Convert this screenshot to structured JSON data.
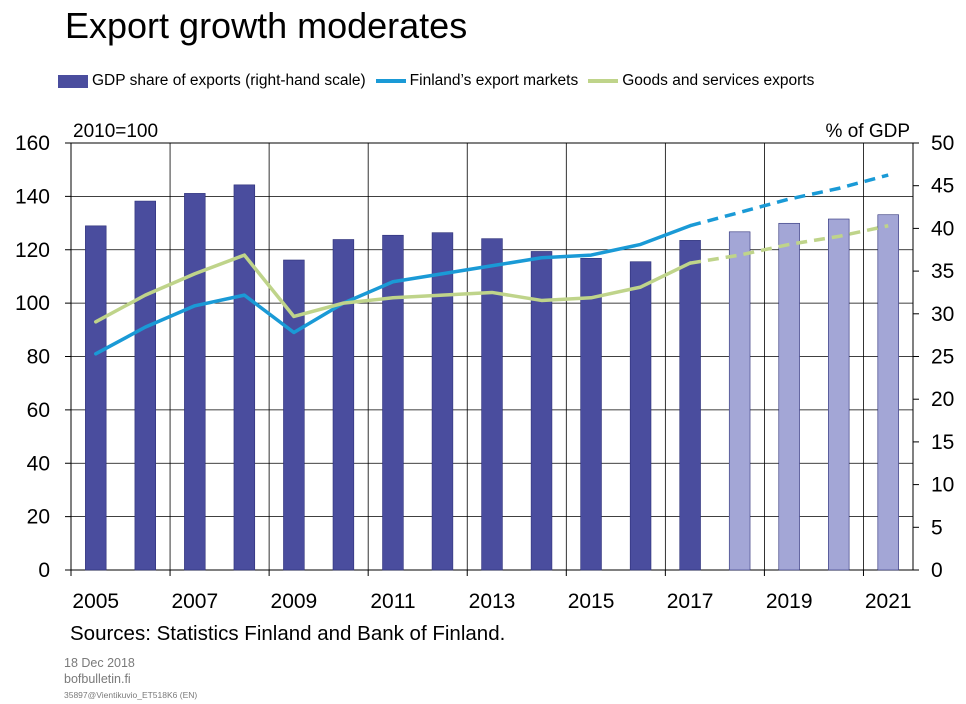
{
  "title": "Export growth moderates",
  "legend": [
    {
      "label": "GDP share of exports (right-hand scale)",
      "color": "#4a4d9e",
      "kind": "bar"
    },
    {
      "label": "Finland’s export markets",
      "color": "#1a9ad6",
      "kind": "line"
    },
    {
      "label": "Goods and services exports",
      "color": "#bfd48a",
      "kind": "line"
    }
  ],
  "left_axis_note": "2010=100",
  "right_axis_note": "% of GDP",
  "sources": "Sources: Statistics Finland and Bank of Finland.",
  "footer": {
    "date": "18 Dec 2018",
    "site": "bofbulletin.fi",
    "code": "35897@Vientikuvio_ET518K6 (EN)"
  },
  "chart_data": {
    "type": "bar+line",
    "years": [
      2005,
      2006,
      2007,
      2008,
      2009,
      2010,
      2011,
      2012,
      2013,
      2014,
      2015,
      2016,
      2017,
      2018,
      2019,
      2020,
      2021
    ],
    "x_tick_labels": [
      "2005",
      "2007",
      "2009",
      "2011",
      "2013",
      "2015",
      "2017",
      "2019",
      "2021"
    ],
    "left_axis": {
      "ylim": [
        0,
        160
      ],
      "ticks": [
        "0",
        "20",
        "40",
        "60",
        "80",
        "100",
        "120",
        "140",
        "160"
      ]
    },
    "right_axis": {
      "ylim": [
        0,
        50
      ],
      "ticks": [
        "0",
        "5",
        "10",
        "15",
        "20",
        "25",
        "30",
        "35",
        "40",
        "45",
        "50"
      ]
    },
    "forecast_from": 2017,
    "series": [
      {
        "name": "GDP share of exports (right-hand scale)",
        "type": "bar",
        "axis": "right",
        "color": "#4a4d9e",
        "forecast_color": "#a3a6d6",
        "values": [
          40.3,
          43.2,
          44.1,
          45.1,
          36.3,
          38.7,
          39.2,
          39.5,
          38.8,
          37.3,
          36.5,
          36.1,
          38.6,
          39.6,
          40.6,
          41.1,
          41.6
        ]
      },
      {
        "name": "Finland’s export markets",
        "type": "line",
        "axis": "left",
        "color": "#1a9ad6",
        "values": [
          81,
          91,
          99,
          103,
          89,
          100,
          108,
          111,
          114,
          117,
          118,
          122,
          129,
          134,
          139,
          143,
          148
        ]
      },
      {
        "name": "Goods and services exports",
        "type": "line",
        "axis": "left",
        "color": "#bfd48a",
        "values": [
          93,
          103,
          111,
          118,
          95,
          100,
          102,
          103,
          104,
          101,
          102,
          106,
          115,
          118,
          122,
          125,
          129
        ]
      }
    ]
  }
}
